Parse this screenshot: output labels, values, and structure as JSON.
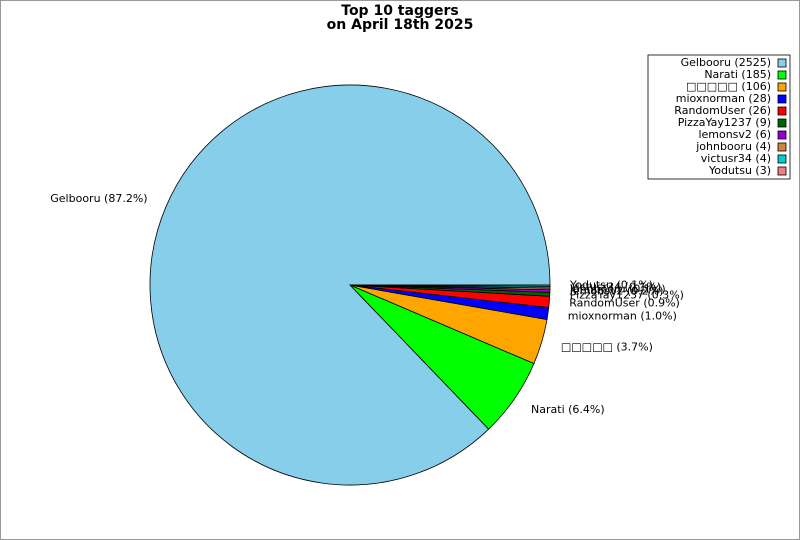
{
  "chart_data": {
    "type": "pie",
    "title": [
      "Top 10 taggers",
      "on April 18th 2025"
    ],
    "values": [
      2525,
      185,
      106,
      28,
      26,
      9,
      6,
      4,
      4,
      3
    ],
    "value_labels": [
      "Gelbooru (2525)",
      "Narati (185)",
      "□□□□□ (106)",
      "mioxnorman (28)",
      "RandomUser (26)",
      "PizzaYay1237 (9)",
      "lemonsv2 (6)",
      "johnbooru (4)",
      "victusr34 (4)",
      "Yodutsu (3)"
    ],
    "slice_labels": [
      "Gelbooru (87.2%)",
      "Narati (6.4%)",
      "□□□□□ (3.7%)",
      "mioxnorman (1.0%)",
      "RandomUser (0.9%)",
      "PizzaYay1237 (0.3%)",
      "lemonsv2 (0.2%)",
      "johnbooru (0.1%)",
      "victusr34 (0.1%)",
      "Yodutsu (0.1%)"
    ],
    "colors": [
      "#87ceeb",
      "#00ff00",
      "#ffa500",
      "#0000ff",
      "#ff0000",
      "#006400",
      "#9400d3",
      "#cd853f",
      "#00ced1",
      "#f08080"
    ],
    "legend": "upper right"
  }
}
